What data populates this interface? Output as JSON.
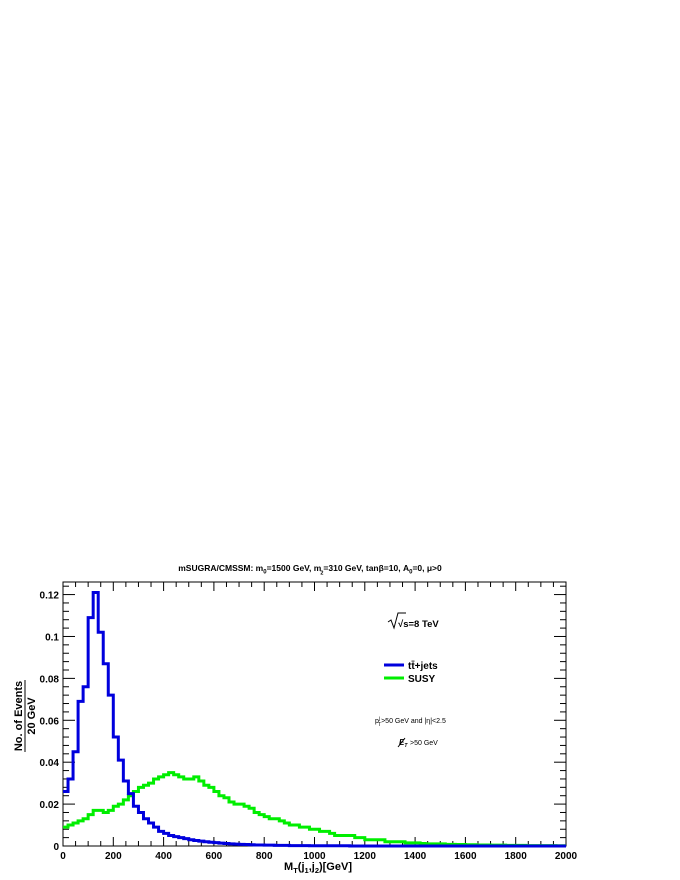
{
  "chart_data": {
    "type": "line",
    "title": {
      "pre": "mSUGRA/CMSSM: m",
      "pre_sub": "0",
      "mid": "=1500 GeV, m",
      "frac_num": "1",
      "frac_den": "2",
      "post": "=310 GeV, tanβ=10, A",
      "post_sub": "0",
      "tail": "=0, μ>0"
    },
    "xlabel": {
      "main": "M",
      "sub1": "T",
      "paren": "(j",
      "sub2": "1",
      "comma": ",j",
      "sub3": "2",
      "tail": ")[GeV]"
    },
    "ylabel": {
      "num": "No. of Events",
      "den": "20 GeV"
    },
    "xlim": [
      0,
      2000
    ],
    "ylim": [
      0,
      0.126
    ],
    "x_ticks": [
      0,
      200,
      400,
      600,
      800,
      1000,
      1200,
      1400,
      1600,
      1800,
      2000
    ],
    "x_tick_labels": [
      "0",
      "200",
      "400",
      "600",
      "800",
      "1000",
      "1200",
      "1400",
      "1600",
      "1800",
      "2000"
    ],
    "y_ticks": [
      0,
      0.02,
      0.04,
      0.06,
      0.08,
      0.1,
      0.12
    ],
    "y_tick_labels": [
      "0",
      "0.02",
      "0.04",
      "0.06",
      "0.08",
      "0.1",
      "0.12"
    ],
    "bin_width": 20,
    "legend_position": "top-right",
    "annotations": {
      "energy": "√s=8 TeV",
      "cut1": "p",
      "cut1_sub": "T",
      "cut1_sup": "j",
      "cut1_rest": ">50 GeV and |η|<2.5",
      "cut2_sym": "E",
      "cut2_sub": "T",
      "cut2_rest": ">50 GeV"
    },
    "series": [
      {
        "name": "tt̄+jets",
        "color": "#0000dd",
        "values": [
          0.026,
          0.032,
          0.045,
          0.069,
          0.076,
          0.109,
          0.121,
          0.102,
          0.087,
          0.072,
          0.052,
          0.041,
          0.031,
          0.025,
          0.019,
          0.016,
          0.013,
          0.011,
          0.009,
          0.007,
          0.006,
          0.005,
          0.0045,
          0.004,
          0.0035,
          0.003,
          0.0026,
          0.0023,
          0.002,
          0.0018,
          0.0016,
          0.0014,
          0.0012,
          0.001,
          0.0009,
          0.0008,
          0.0007,
          0.0006,
          0.0005,
          0.0005,
          0.0004,
          0.0004,
          0.0003,
          0.0003,
          0.0003,
          0.0002,
          0.0002,
          0.0002,
          0.0002,
          0.0001,
          0.0001,
          0.0001,
          0.0001,
          0.0001,
          0.0001,
          0.0001,
          0.0001,
          0,
          0,
          0,
          0,
          0,
          0,
          0,
          0,
          0,
          0,
          0,
          0,
          0,
          0,
          0,
          0,
          0,
          0,
          0,
          0,
          0,
          0,
          0,
          0,
          0,
          0,
          0,
          0,
          0,
          0,
          0,
          0,
          0,
          0,
          0,
          0,
          0,
          0,
          0,
          0,
          0,
          0,
          0
        ]
      },
      {
        "name": "SUSY",
        "color": "#00ee00",
        "values": [
          0.009,
          0.01,
          0.011,
          0.012,
          0.013,
          0.015,
          0.017,
          0.017,
          0.016,
          0.017,
          0.019,
          0.02,
          0.022,
          0.024,
          0.026,
          0.028,
          0.029,
          0.03,
          0.032,
          0.033,
          0.034,
          0.035,
          0.034,
          0.033,
          0.032,
          0.032,
          0.033,
          0.031,
          0.029,
          0.028,
          0.026,
          0.024,
          0.023,
          0.021,
          0.02,
          0.02,
          0.019,
          0.018,
          0.016,
          0.015,
          0.014,
          0.013,
          0.013,
          0.012,
          0.011,
          0.01,
          0.01,
          0.009,
          0.009,
          0.008,
          0.008,
          0.007,
          0.007,
          0.006,
          0.005,
          0.005,
          0.005,
          0.005,
          0.004,
          0.004,
          0.003,
          0.003,
          0.003,
          0.003,
          0.002,
          0.002,
          0.002,
          0.002,
          0.0015,
          0.0015,
          0.0015,
          0.0012,
          0.001,
          0.001,
          0.001,
          0.001,
          0.0008,
          0.0008,
          0.0007,
          0.0007,
          0.0006,
          0.0006,
          0.0005,
          0.0005,
          0.0005,
          0.0004,
          0.0004,
          0.0004,
          0.0003,
          0.0003,
          0.0003,
          0.0003,
          0.0002,
          0.0002,
          0.0002,
          0.0002,
          0.0002,
          0.0002,
          0.0001,
          0.0001
        ]
      }
    ]
  }
}
